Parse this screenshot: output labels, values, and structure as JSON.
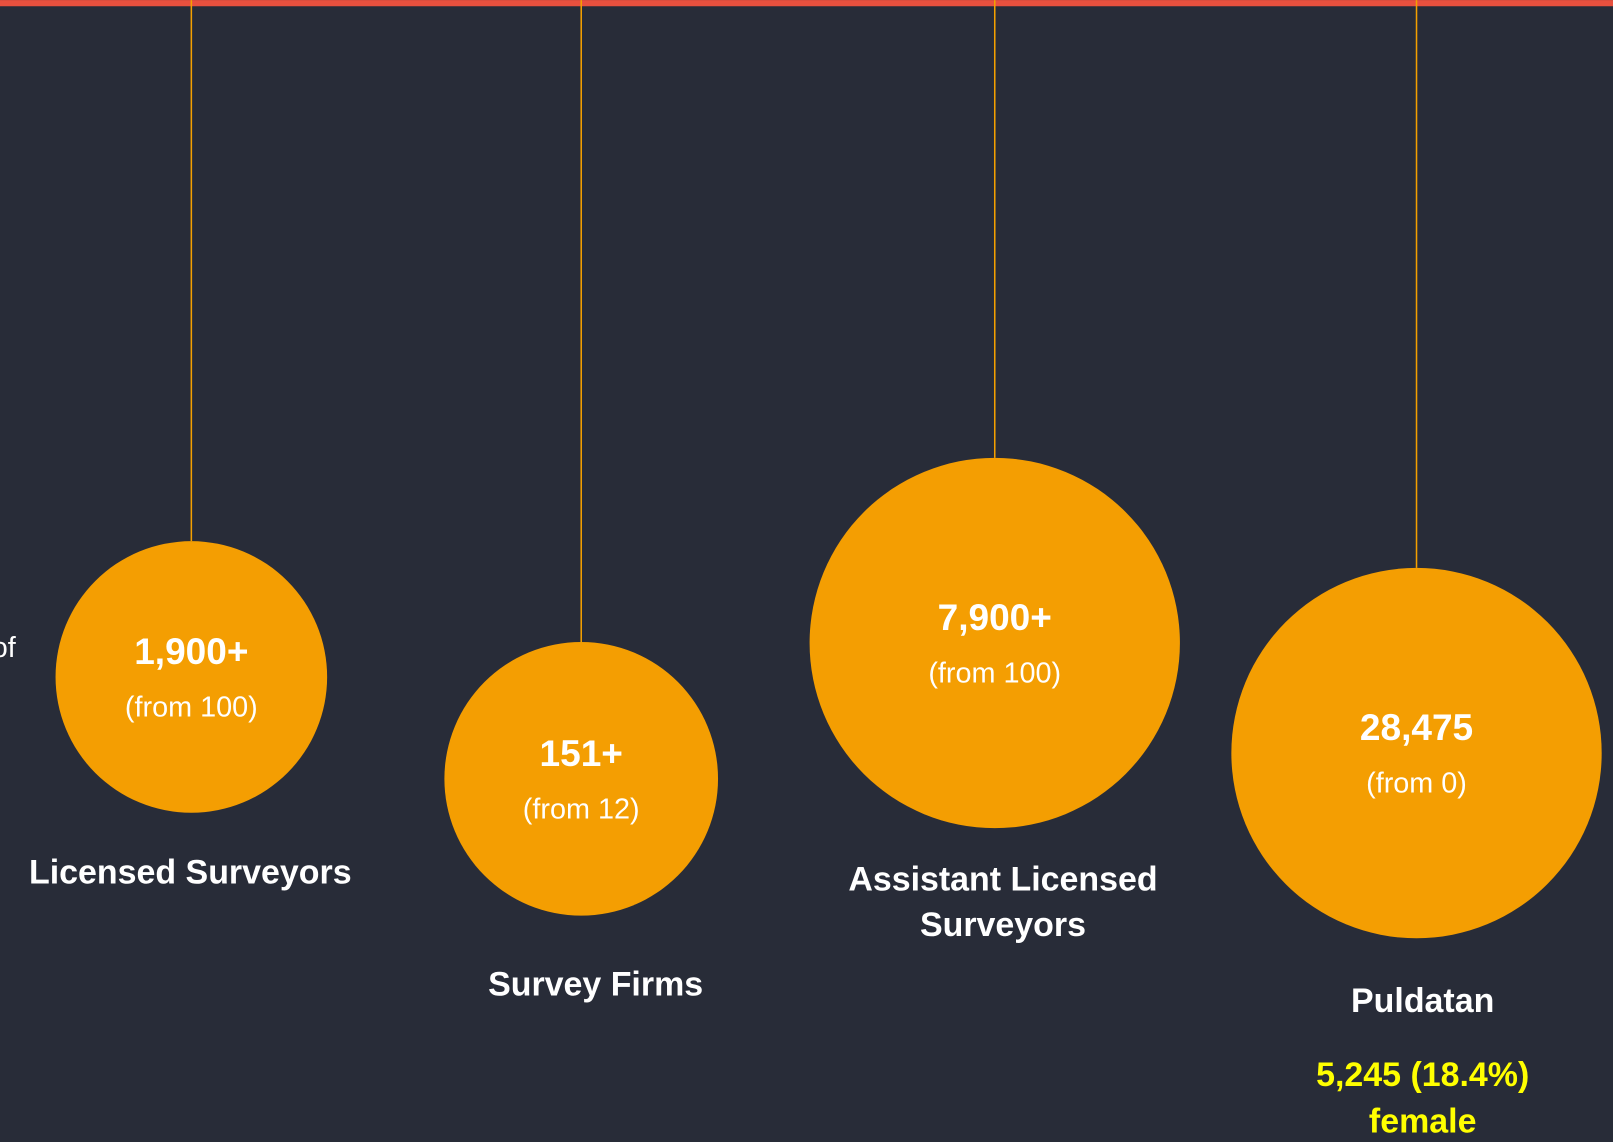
{
  "side_text": "of",
  "items": [
    {
      "value": "1,900+",
      "from": "(from 100)",
      "label_lines": [
        "Licensed Surveyors"
      ]
    },
    {
      "value": "151+",
      "from": "(from 12)",
      "label_lines": [
        "Survey Firms"
      ]
    },
    {
      "value": "7,900+",
      "from": "(from 100)",
      "label_lines": [
        "Assistant Licensed",
        "Surveyors"
      ]
    },
    {
      "value": "28,475",
      "from": "(from 0)",
      "label_lines": [
        "Puldatan"
      ],
      "note_lines": [
        "5,245 (18.4%)",
        "female"
      ]
    }
  ]
}
